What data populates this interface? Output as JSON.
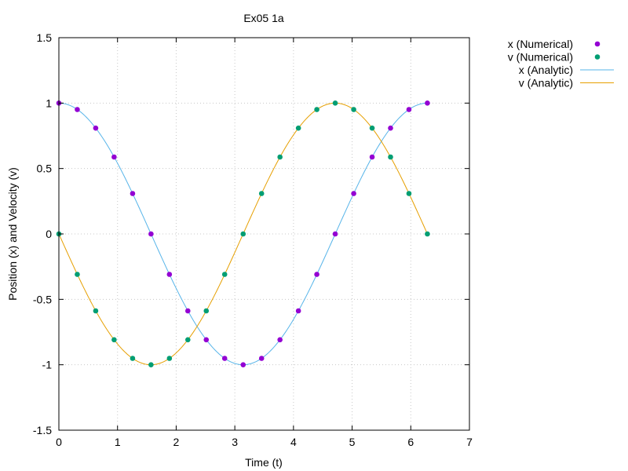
{
  "chart_data": {
    "type": "line",
    "title": "Ex05 1a",
    "xlabel": "Time (t)",
    "ylabel": "Position (x) and Velocity (v)",
    "xlim": [
      0,
      7
    ],
    "ylim": [
      -1.5,
      1.5
    ],
    "x_ticks": [
      0,
      1,
      2,
      3,
      4,
      5,
      6,
      7
    ],
    "y_ticks": [
      -1.5,
      -1,
      -0.5,
      0,
      0.5,
      1,
      1.5
    ],
    "x_tick_labels": [
      "0",
      "1",
      "2",
      "3",
      "4",
      "5",
      "6",
      "7"
    ],
    "y_tick_labels": [
      "-1.5",
      "-1",
      "-0.5",
      "0",
      "0.5",
      "1",
      "1.5"
    ],
    "grid": true,
    "legend_position": "outside-top-right",
    "series": [
      {
        "name": "x (Numerical)",
        "kind": "scatter",
        "color": "#9400d3",
        "x": [
          0,
          0.314,
          0.628,
          0.942,
          1.257,
          1.571,
          1.885,
          2.199,
          2.513,
          2.827,
          3.142,
          3.456,
          3.77,
          4.084,
          4.398,
          4.712,
          5.027,
          5.341,
          5.655,
          5.969,
          6.283
        ],
        "y": [
          1,
          0.951,
          0.809,
          0.588,
          0.309,
          0,
          -0.309,
          -0.588,
          -0.809,
          -0.951,
          -1,
          -0.951,
          -0.809,
          -0.588,
          -0.309,
          0,
          0.309,
          0.588,
          0.809,
          0.951,
          1
        ]
      },
      {
        "name": "v (Numerical)",
        "kind": "scatter",
        "color": "#009e73",
        "x": [
          0,
          0.314,
          0.628,
          0.942,
          1.257,
          1.571,
          1.885,
          2.199,
          2.513,
          2.827,
          3.142,
          3.456,
          3.77,
          4.084,
          4.398,
          4.712,
          5.027,
          5.341,
          5.655,
          5.969,
          6.283
        ],
        "y": [
          0,
          -0.309,
          -0.588,
          -0.809,
          -0.951,
          -1,
          -0.951,
          -0.809,
          -0.588,
          -0.309,
          0,
          0.309,
          0.588,
          0.809,
          0.951,
          1,
          0.951,
          0.809,
          0.588,
          0.309,
          0
        ]
      },
      {
        "name": "x (Analytic)",
        "kind": "line",
        "color": "#56b4e9",
        "function": "cos",
        "x_range": [
          0,
          6.283
        ]
      },
      {
        "name": "v (Analytic)",
        "kind": "line",
        "color": "#e69f00",
        "function": "-sin",
        "x_range": [
          0,
          6.283
        ]
      }
    ]
  }
}
